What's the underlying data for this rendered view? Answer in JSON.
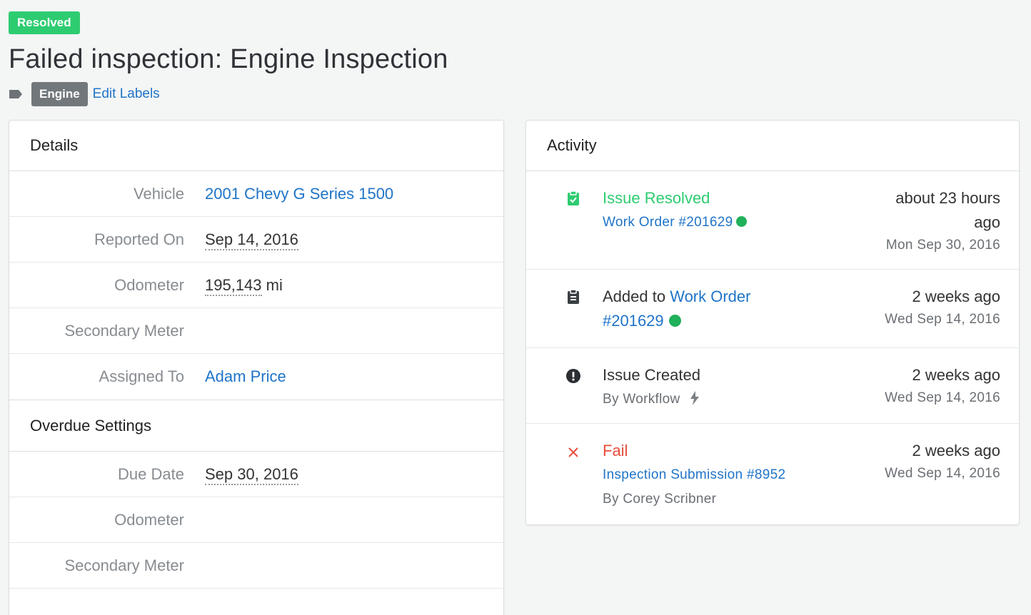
{
  "status": "Resolved",
  "title": "Failed inspection: Engine Inspection",
  "labels": {
    "chip": "Engine",
    "edit": "Edit Labels"
  },
  "details": {
    "header": "Details",
    "vehicle": {
      "label": "Vehicle",
      "value": "2001 Chevy G Series 1500"
    },
    "reported_on": {
      "label": "Reported On",
      "value": "Sep 14, 2016"
    },
    "odometer": {
      "label": "Odometer",
      "value": "195,143",
      "unit": "mi"
    },
    "secondary_meter": {
      "label": "Secondary Meter",
      "value": ""
    },
    "assigned_to": {
      "label": "Assigned To",
      "value": "Adam Price"
    }
  },
  "overdue": {
    "header": "Overdue Settings",
    "due_date": {
      "label": "Due Date",
      "value": "Sep 30, 2016"
    },
    "odometer": {
      "label": "Odometer",
      "value": ""
    },
    "secondary_meter": {
      "label": "Secondary Meter",
      "value": ""
    }
  },
  "activity": {
    "header": "Activity",
    "items": [
      {
        "title": "Issue Resolved",
        "sub_link": "Work Order #201629",
        "rel_line1": "about 23 hours",
        "rel_line2": "ago",
        "date": "Mon Sep 30, 2016"
      },
      {
        "title_prefix": "Added to",
        "title_link_a": "Work Order",
        "title_link_b": "#201629",
        "rel": "2 weeks ago",
        "date": "Wed Sep 14, 2016"
      },
      {
        "title": "Issue Created",
        "sub": "By Workflow",
        "rel": "2 weeks ago",
        "date": "Wed Sep 14, 2016"
      },
      {
        "title": "Fail",
        "sub_link": "Inspection Submission #8952",
        "sub2": "By Corey Scribner",
        "rel": "2 weeks ago",
        "date": "Wed Sep 14, 2016"
      }
    ]
  },
  "colors": {
    "green": "#2ecc71",
    "link": "#1f74c8",
    "red": "#e74c3c",
    "dot": "#20b15a"
  }
}
